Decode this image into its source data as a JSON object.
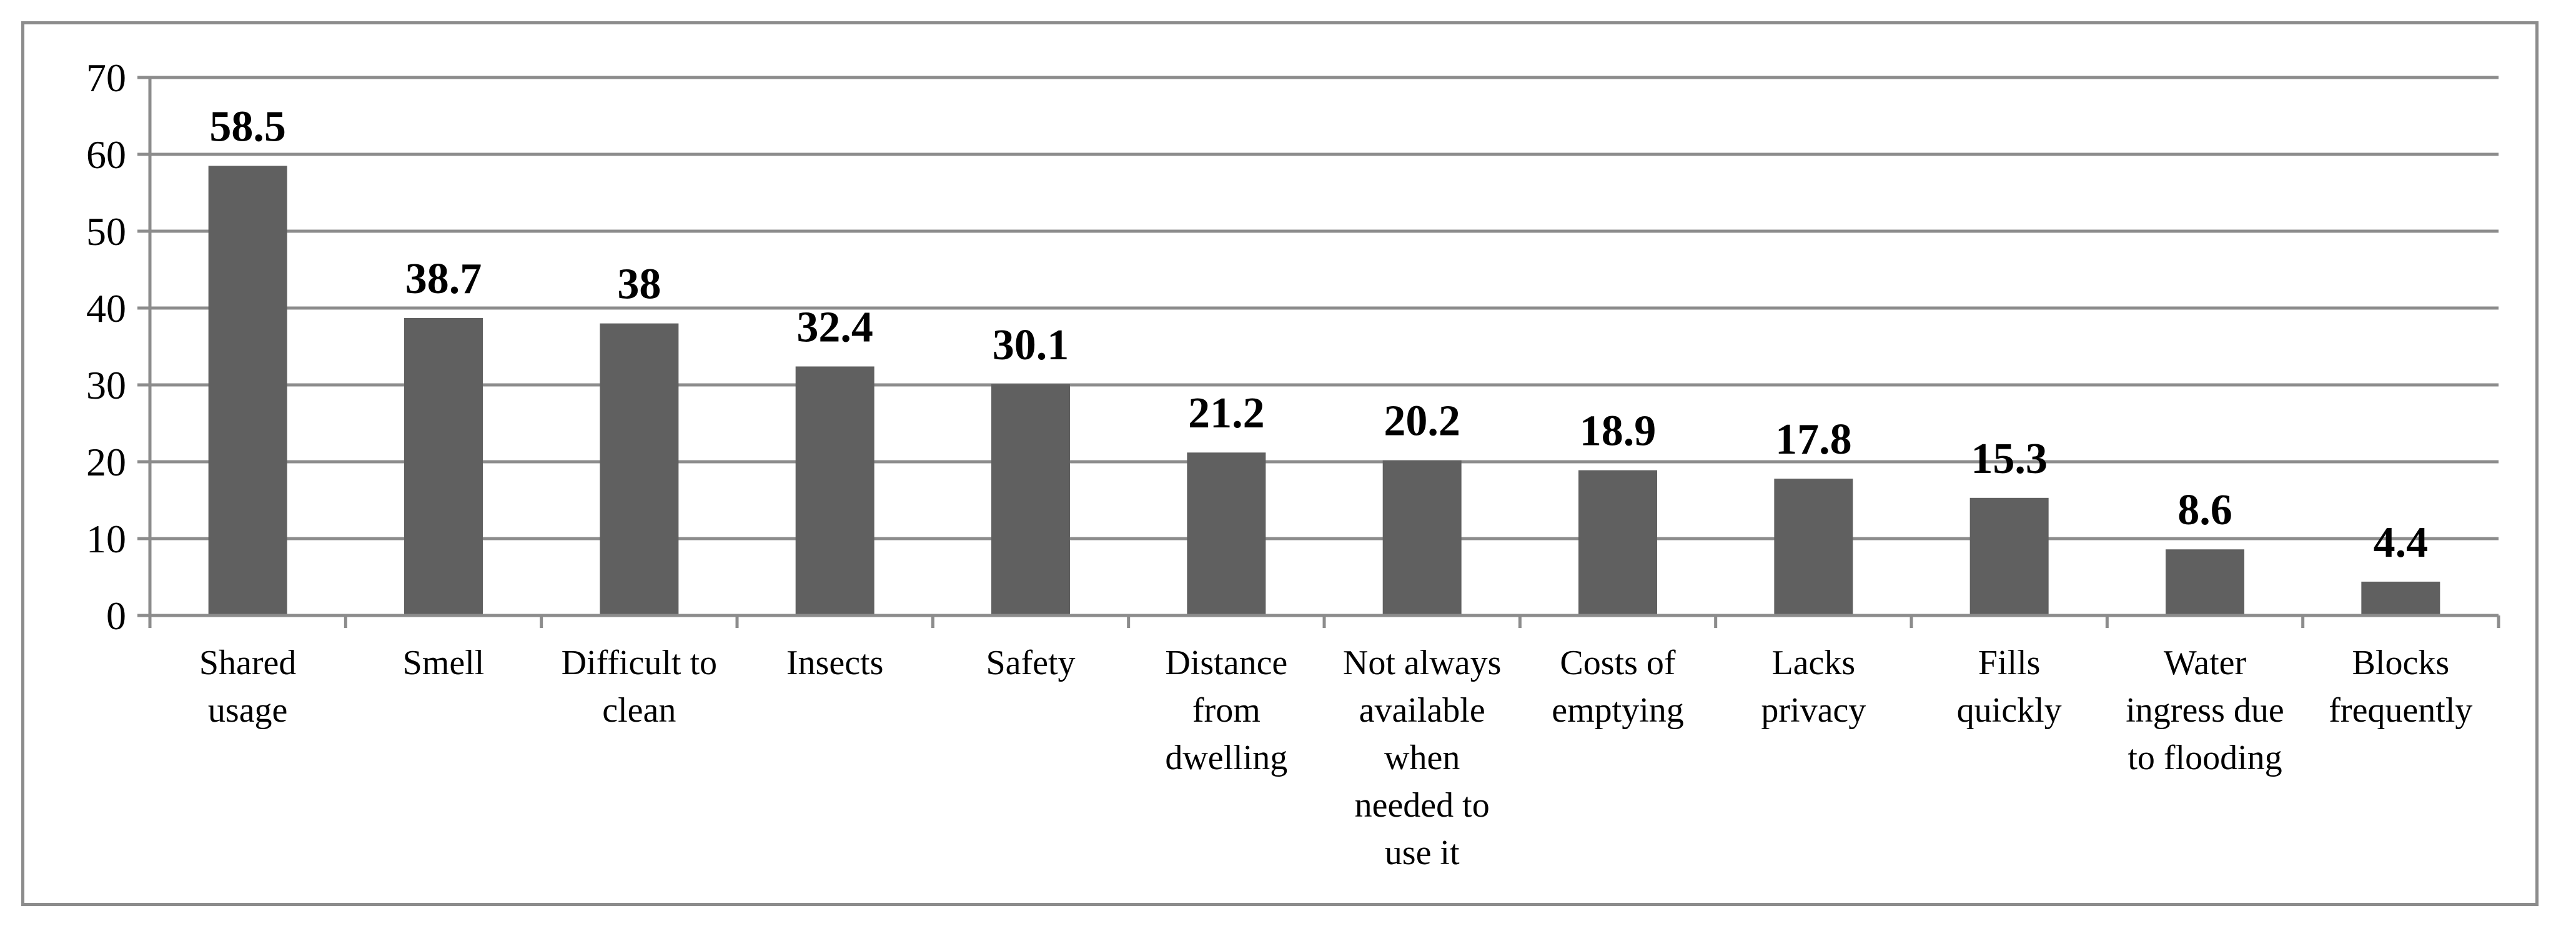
{
  "chart_data": {
    "type": "bar",
    "categories": [
      [
        "Shared",
        "usage"
      ],
      [
        "Smell"
      ],
      [
        "Difficult to",
        "clean"
      ],
      [
        "Insects"
      ],
      [
        "Safety"
      ],
      [
        "Distance",
        "from",
        "dwelling"
      ],
      [
        "Not always",
        "available",
        "when",
        "needed to",
        "use it"
      ],
      [
        "Costs of",
        "emptying"
      ],
      [
        "Lacks",
        "privacy"
      ],
      [
        "Fills",
        "quickly"
      ],
      [
        "Water",
        "ingress due",
        "to flooding"
      ],
      [
        "Blocks",
        "frequently"
      ]
    ],
    "values": [
      58.5,
      38.7,
      38,
      32.4,
      30.1,
      21.2,
      20.2,
      18.9,
      17.8,
      15.3,
      8.6,
      4.4
    ],
    "data_labels": [
      "58.5",
      "38.7",
      "38",
      "32.4",
      "30.1",
      "21.2",
      "20.2",
      "18.9",
      "17.8",
      "15.3",
      "8.6",
      "4.4"
    ],
    "yticks": [
      "0",
      "10",
      "20",
      "30",
      "40",
      "50",
      "60",
      "70"
    ],
    "ylim": [
      0,
      70
    ],
    "grid": true,
    "legend": "none",
    "bar_color": "#606060",
    "grid_color": "#8c8c8c"
  }
}
